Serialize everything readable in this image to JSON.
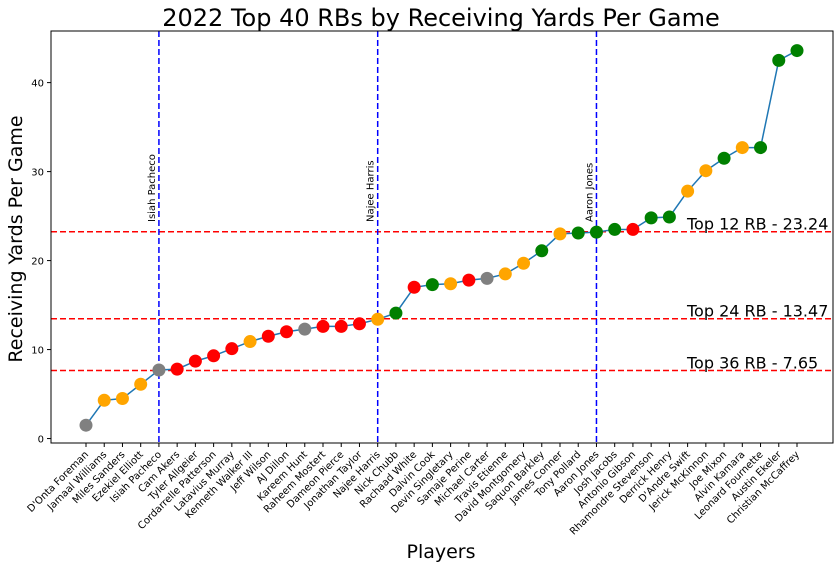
{
  "chart_data": {
    "type": "line",
    "title": "2022 Top 40 RBs by Receiving Yards Per Game",
    "xlabel": "Players",
    "ylabel": "Receiving Yards Per Game",
    "ylim": [
      -0.5,
      45.8
    ],
    "yticks": [
      0,
      10,
      20,
      30,
      40
    ],
    "grid": false,
    "line_color": "#1f77b4",
    "categories": [
      "D'Onta Foreman",
      "Jamaal Williams",
      "Miles Sanders",
      "Ezekiel Elliott",
      "Isiah Pacheco",
      "Cam Akers",
      "Tyler Allgeier",
      "Cordarrelle Patterson",
      "Latavius Murray",
      "Kenneth Walker III",
      "Jeff Wilson",
      "AJ Dillon",
      "Kareem Hunt",
      "Raheem Mostert",
      "Dameon Pierce",
      "Jonathan Taylor",
      "Najee Harris",
      "Nick Chubb",
      "Rachaad White",
      "Dalvin Cook",
      "Devin Singletary",
      "Samaje Perine",
      "Michael Carter",
      "Travis Etienne",
      "David Montgomery",
      "Saquon Barkley",
      "James Conner",
      "Tony Pollard",
      "Aaron Jones",
      "Josh Jacobs",
      "Antonio Gibson",
      "Rhamondre Stevenson",
      "Derrick Henry",
      "D'Andre Swift",
      "Jerick McKinnon",
      "Joe Mixon",
      "Alvin Kamara",
      "Leonard Fournette",
      "Austin Ekeler",
      "Christian McCaffrey"
    ],
    "values": [
      1.5,
      4.3,
      4.5,
      6.1,
      7.7,
      7.8,
      8.7,
      9.3,
      10.1,
      10.9,
      11.5,
      12.0,
      12.3,
      12.6,
      12.6,
      12.9,
      13.4,
      14.1,
      17.0,
      17.3,
      17.4,
      17.8,
      18.0,
      18.5,
      19.7,
      21.1,
      23.0,
      23.1,
      23.2,
      23.5,
      23.5,
      24.8,
      24.9,
      27.8,
      30.1,
      31.5,
      32.7,
      32.7,
      42.5,
      43.6
    ],
    "marker_colors": [
      "#808080",
      "#FFA500",
      "#FFA500",
      "#FFA500",
      "#808080",
      "#FF0000",
      "#FF0000",
      "#FF0000",
      "#FF0000",
      "#FFA500",
      "#FF0000",
      "#FF0000",
      "#808080",
      "#FF0000",
      "#FF0000",
      "#FF0000",
      "#FFA500",
      "#008000",
      "#FF0000",
      "#008000",
      "#FFA500",
      "#FF0000",
      "#808080",
      "#FFA500",
      "#FFA500",
      "#008000",
      "#FFA500",
      "#008000",
      "#008000",
      "#008000",
      "#FF0000",
      "#008000",
      "#008000",
      "#FFA500",
      "#FFA500",
      "#008000",
      "#FFA500",
      "#008000",
      "#008000",
      "#008000"
    ],
    "hlines": [
      {
        "y": 23.24,
        "label": "Top 12 RB - 23.24",
        "color": "#FF0000"
      },
      {
        "y": 13.47,
        "label": "Top 24 RB - 13.47",
        "color": "#FF0000"
      },
      {
        "y": 7.65,
        "label": "Top 36 RB - 7.65",
        "color": "#FF0000"
      }
    ],
    "vlines": [
      {
        "category": "Isiah Pacheco",
        "label": "Isiah Pacheco",
        "color": "#0000FF"
      },
      {
        "category": "Najee Harris",
        "label": "Najee Harris",
        "color": "#0000FF"
      },
      {
        "category": "Aaron Jones",
        "label": "Aaron Jones",
        "color": "#0000FF"
      }
    ]
  }
}
